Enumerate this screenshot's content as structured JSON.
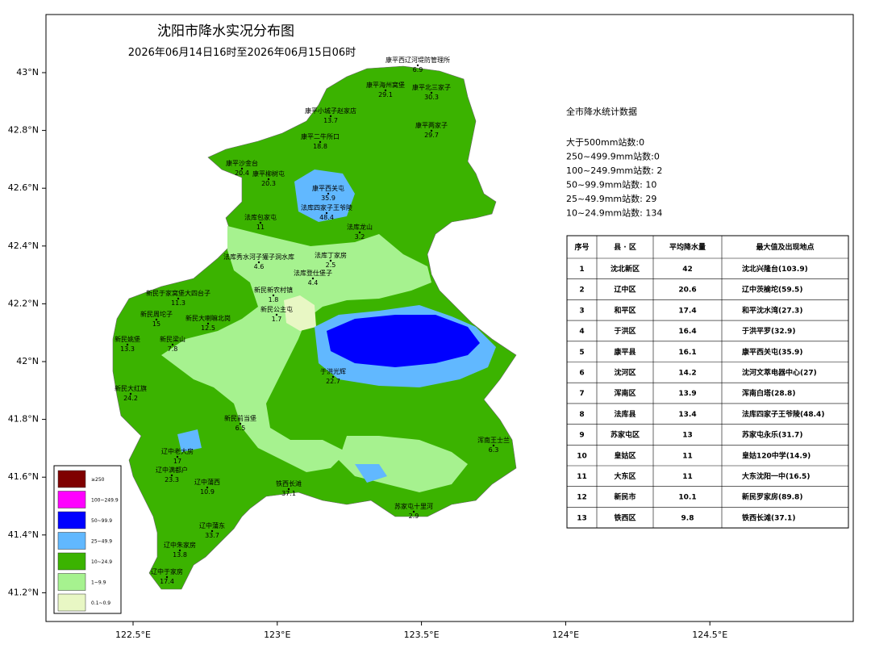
{
  "header": {
    "title": "沈阳市降水实况分布图",
    "subtitle": "2026年06月14日16时至2026年06月15日06时"
  },
  "axes": {
    "lat": [
      {
        "value": 43,
        "label": "43°N"
      },
      {
        "value": 42.8,
        "label": "42.8°N"
      },
      {
        "value": 42.6,
        "label": "42.6°N"
      },
      {
        "value": 42.4,
        "label": "42.4°N"
      },
      {
        "value": 42.2,
        "label": "42.2°N"
      },
      {
        "value": 42,
        "label": "42°N"
      },
      {
        "value": 41.8,
        "label": "41.8°N"
      },
      {
        "value": 41.6,
        "label": "41.6°N"
      },
      {
        "value": 41.4,
        "label": "41.4°N"
      },
      {
        "value": 41.2,
        "label": "41.2°N"
      }
    ],
    "lon": [
      {
        "value": 122.5,
        "label": "122.5°E"
      },
      {
        "value": 123,
        "label": "123°E"
      },
      {
        "value": 123.5,
        "label": "123.5°E"
      },
      {
        "value": 124,
        "label": "124°E"
      },
      {
        "value": 124.5,
        "label": "124.5°E"
      }
    ]
  },
  "legend": [
    {
      "label": "≥250",
      "color": "#7f0000"
    },
    {
      "label": "100~249.9",
      "color": "#ff00ff"
    },
    {
      "label": "50~99.9",
      "color": "#0000ff"
    },
    {
      "label": "25~49.9",
      "color": "#61b8ff"
    },
    {
      "label": "10~24.9",
      "color": "#3bb300"
    },
    {
      "label": "1~9.9",
      "color": "#a6f28f"
    },
    {
      "label": "0.1~0.9",
      "color": "#e8f7c4"
    }
  ],
  "stats": {
    "title": "全市降水统计数据",
    "lines": [
      "大于500mm站数:0",
      "250~499.9mm站数:0",
      "100~249.9mm站数:  2",
      "50~99.9mm站数:  10",
      "25~49.9mm站数:  29",
      "10~24.9mm站数:  134"
    ]
  },
  "table": {
    "header": [
      "序号",
      "县 · 区",
      "平均降水量",
      "最大值及出现地点"
    ],
    "rows": [
      [
        "1",
        "沈北新区",
        "42",
        "沈北兴隆台(103.9)"
      ],
      [
        "2",
        "辽中区",
        "20.6",
        "辽中茨榆坨(59.5)"
      ],
      [
        "3",
        "和平区",
        "17.4",
        "和平沈水湾(27.3)"
      ],
      [
        "4",
        "于洪区",
        "16.4",
        "于洪平罗(32.9)"
      ],
      [
        "5",
        "康平县",
        "16.1",
        "康平西关屯(35.9)"
      ],
      [
        "6",
        "沈河区",
        "14.2",
        "沈河文萃电器中心(27)"
      ],
      [
        "7",
        "浑南区",
        "13.9",
        "浑南白塔(28.8)"
      ],
      [
        "8",
        "法库县",
        "13.4",
        "法库四家子王爷陵(48.4)"
      ],
      [
        "9",
        "苏家屯区",
        "13",
        "苏家屯永乐(31.7)"
      ],
      [
        "10",
        "皇姑区",
        "11",
        "皇姑120中学(14.9)"
      ],
      [
        "11",
        "大东区",
        "11",
        "大东沈阳一中(16.5)"
      ],
      [
        "12",
        "新民市",
        "10.1",
        "新民罗家房(89.8)"
      ],
      [
        "13",
        "铁西区",
        "9.8",
        "铁西长滩(37.1)"
      ]
    ]
  },
  "stations": [
    {
      "name": "康平西辽河堤防管理所",
      "value": 6.9
    },
    {
      "name": "康平海州窝堡",
      "value": 29.1
    },
    {
      "name": "康平北三家子",
      "value": 30.3
    },
    {
      "name": "康平小城子赵家店",
      "value": 13.7
    },
    {
      "name": "康平两家子",
      "value": 29.7
    },
    {
      "name": "康平二牛所口",
      "value": 18.8
    },
    {
      "name": "康平沙金台",
      "value": 20.4
    },
    {
      "name": "康平柳树屯",
      "value": 20.3
    },
    {
      "name": "康平西关屯",
      "value": 35.9
    },
    {
      "name": "法库四家子王爷陵",
      "value": 48.4
    },
    {
      "name": "法库包家屯",
      "value": 11
    },
    {
      "name": "法库龙山",
      "value": 3.2
    },
    {
      "name": "法库秀水河子獾子洞水库",
      "value": 4.6
    },
    {
      "name": "法库丁家房",
      "value": 2.5
    },
    {
      "name": "法库登仕堡子",
      "value": 4.4
    },
    {
      "name": "新民新农村镇",
      "value": 1.8
    },
    {
      "name": "新民公主屯",
      "value": 1.7
    },
    {
      "name": "新民于家窝堡大四台子",
      "value": 11.3
    },
    {
      "name": "新民周坨子",
      "value": 15
    },
    {
      "name": "新民大喇嘛北岗",
      "value": 12.5
    },
    {
      "name": "新民姚堡",
      "value": 13.3
    },
    {
      "name": "新民梁山",
      "value": 7.8
    },
    {
      "name": "新民大红旗",
      "value": 24.2
    },
    {
      "name": "新民前当堡",
      "value": 6.5
    },
    {
      "name": "于洪光辉",
      "value": 22.7
    },
    {
      "name": "辽中老大房",
      "value": 17
    },
    {
      "name": "辽中满都户",
      "value": 23.3
    },
    {
      "name": "辽中蒲西",
      "value": 10.9
    },
    {
      "name": "辽中蒲东",
      "value": 33.7
    },
    {
      "name": "辽中朱家房",
      "value": 13.8
    },
    {
      "name": "辽中于家房",
      "value": 17.4
    },
    {
      "name": "铁西长滩",
      "value": 37.1
    },
    {
      "name": "苏家屯十里河",
      "value": 2.9
    },
    {
      "name": "浑南王士兰",
      "value": 6.3
    }
  ]
}
